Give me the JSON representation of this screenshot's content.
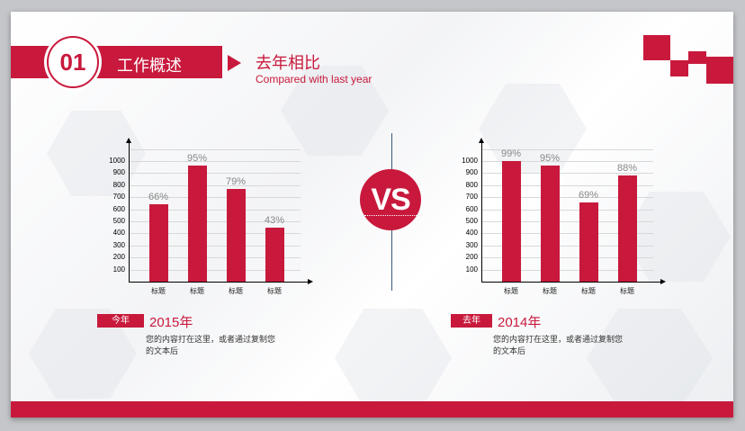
{
  "header": {
    "section_number": "01",
    "section_label": "工作概述",
    "title_cn": "去年相比",
    "title_en": "Compared  with last year"
  },
  "center": {
    "vs_label": "VS"
  },
  "colors": {
    "accent": "#c8193c",
    "divider": "#3c5a7a",
    "bar_label": "#888888"
  },
  "left_panel": {
    "tag": "今年",
    "year": "2015年",
    "description": "您的内容打在这里，或者通过复制您的文本后"
  },
  "right_panel": {
    "tag": "去年",
    "year": "2014年",
    "description": "您的内容打在这里，或者通过复制您的文本后"
  },
  "chart_data": [
    {
      "type": "bar",
      "title": "2015年",
      "categories": [
        "标题",
        "标题",
        "标题",
        "标题"
      ],
      "values": [
        640,
        960,
        770,
        450
      ],
      "data_labels": [
        "66%",
        "95%",
        "79%",
        "43%"
      ],
      "yticks": [
        "1000",
        "900",
        "800",
        "700",
        "600",
        "500",
        "400",
        "300",
        "200",
        "100"
      ],
      "xlabel": "",
      "ylabel": "",
      "ylim": [
        0,
        1100
      ],
      "grid": true,
      "color": "#c8193c"
    },
    {
      "type": "bar",
      "title": "2014年",
      "categories": [
        "标题",
        "标题",
        "标题",
        "标题"
      ],
      "values": [
        1000,
        960,
        660,
        880
      ],
      "data_labels": [
        "99%",
        "95%",
        "69%",
        "88%"
      ],
      "yticks": [
        "1000",
        "900",
        "800",
        "700",
        "600",
        "500",
        "400",
        "300",
        "200",
        "100"
      ],
      "xlabel": "",
      "ylabel": "",
      "ylim": [
        0,
        1100
      ],
      "grid": true,
      "color": "#c8193c"
    }
  ]
}
